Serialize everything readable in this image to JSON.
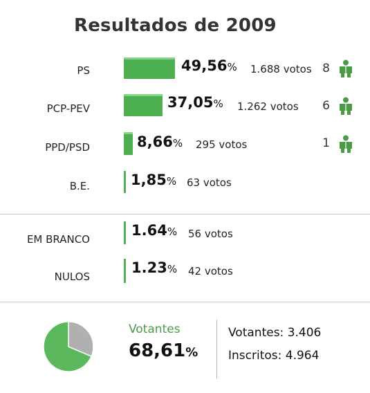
{
  "title": "Resultados de 2009",
  "parties": [
    {
      "name": "PS",
      "percent": "49,56",
      "votes": "1.688 votos",
      "seats": "8",
      "share": 49.56
    },
    {
      "name": "PCP-PEV",
      "percent": "37,05",
      "votes": "1.262 votos",
      "seats": "6",
      "share": 37.05
    },
    {
      "name": "PPD/PSD",
      "percent": "8,66",
      "votes": "295 votos",
      "seats": "1",
      "share": 8.66
    },
    {
      "name": "B.E.",
      "percent": "1,85",
      "votes": "63 votos",
      "share": 1.85
    }
  ],
  "others": [
    {
      "name": "EM BRANCO",
      "percent": "1.64",
      "votes": "56 votos",
      "share": 1.64
    },
    {
      "name": "NULOS",
      "percent": "1.23",
      "votes": "42 votos",
      "share": 1.23
    }
  ],
  "percent_symbol": "%",
  "turnout": {
    "label": "Votantes",
    "percent": "68,61",
    "share": 68.61,
    "votantes_label": "Votantes:",
    "votantes_value": "3.406",
    "inscritos_label": "Inscritos:",
    "inscritos_value": "4.964"
  },
  "colors": {
    "bar": "#4caf50",
    "bar_highlight": "#86d486",
    "pie_turnout": "#5cb85c",
    "pie_rest": "#b0b0b0",
    "icon": "#4a9a46"
  },
  "icons": {
    "seat": "person-icon",
    "turnout": "pie-chart-icon"
  }
}
